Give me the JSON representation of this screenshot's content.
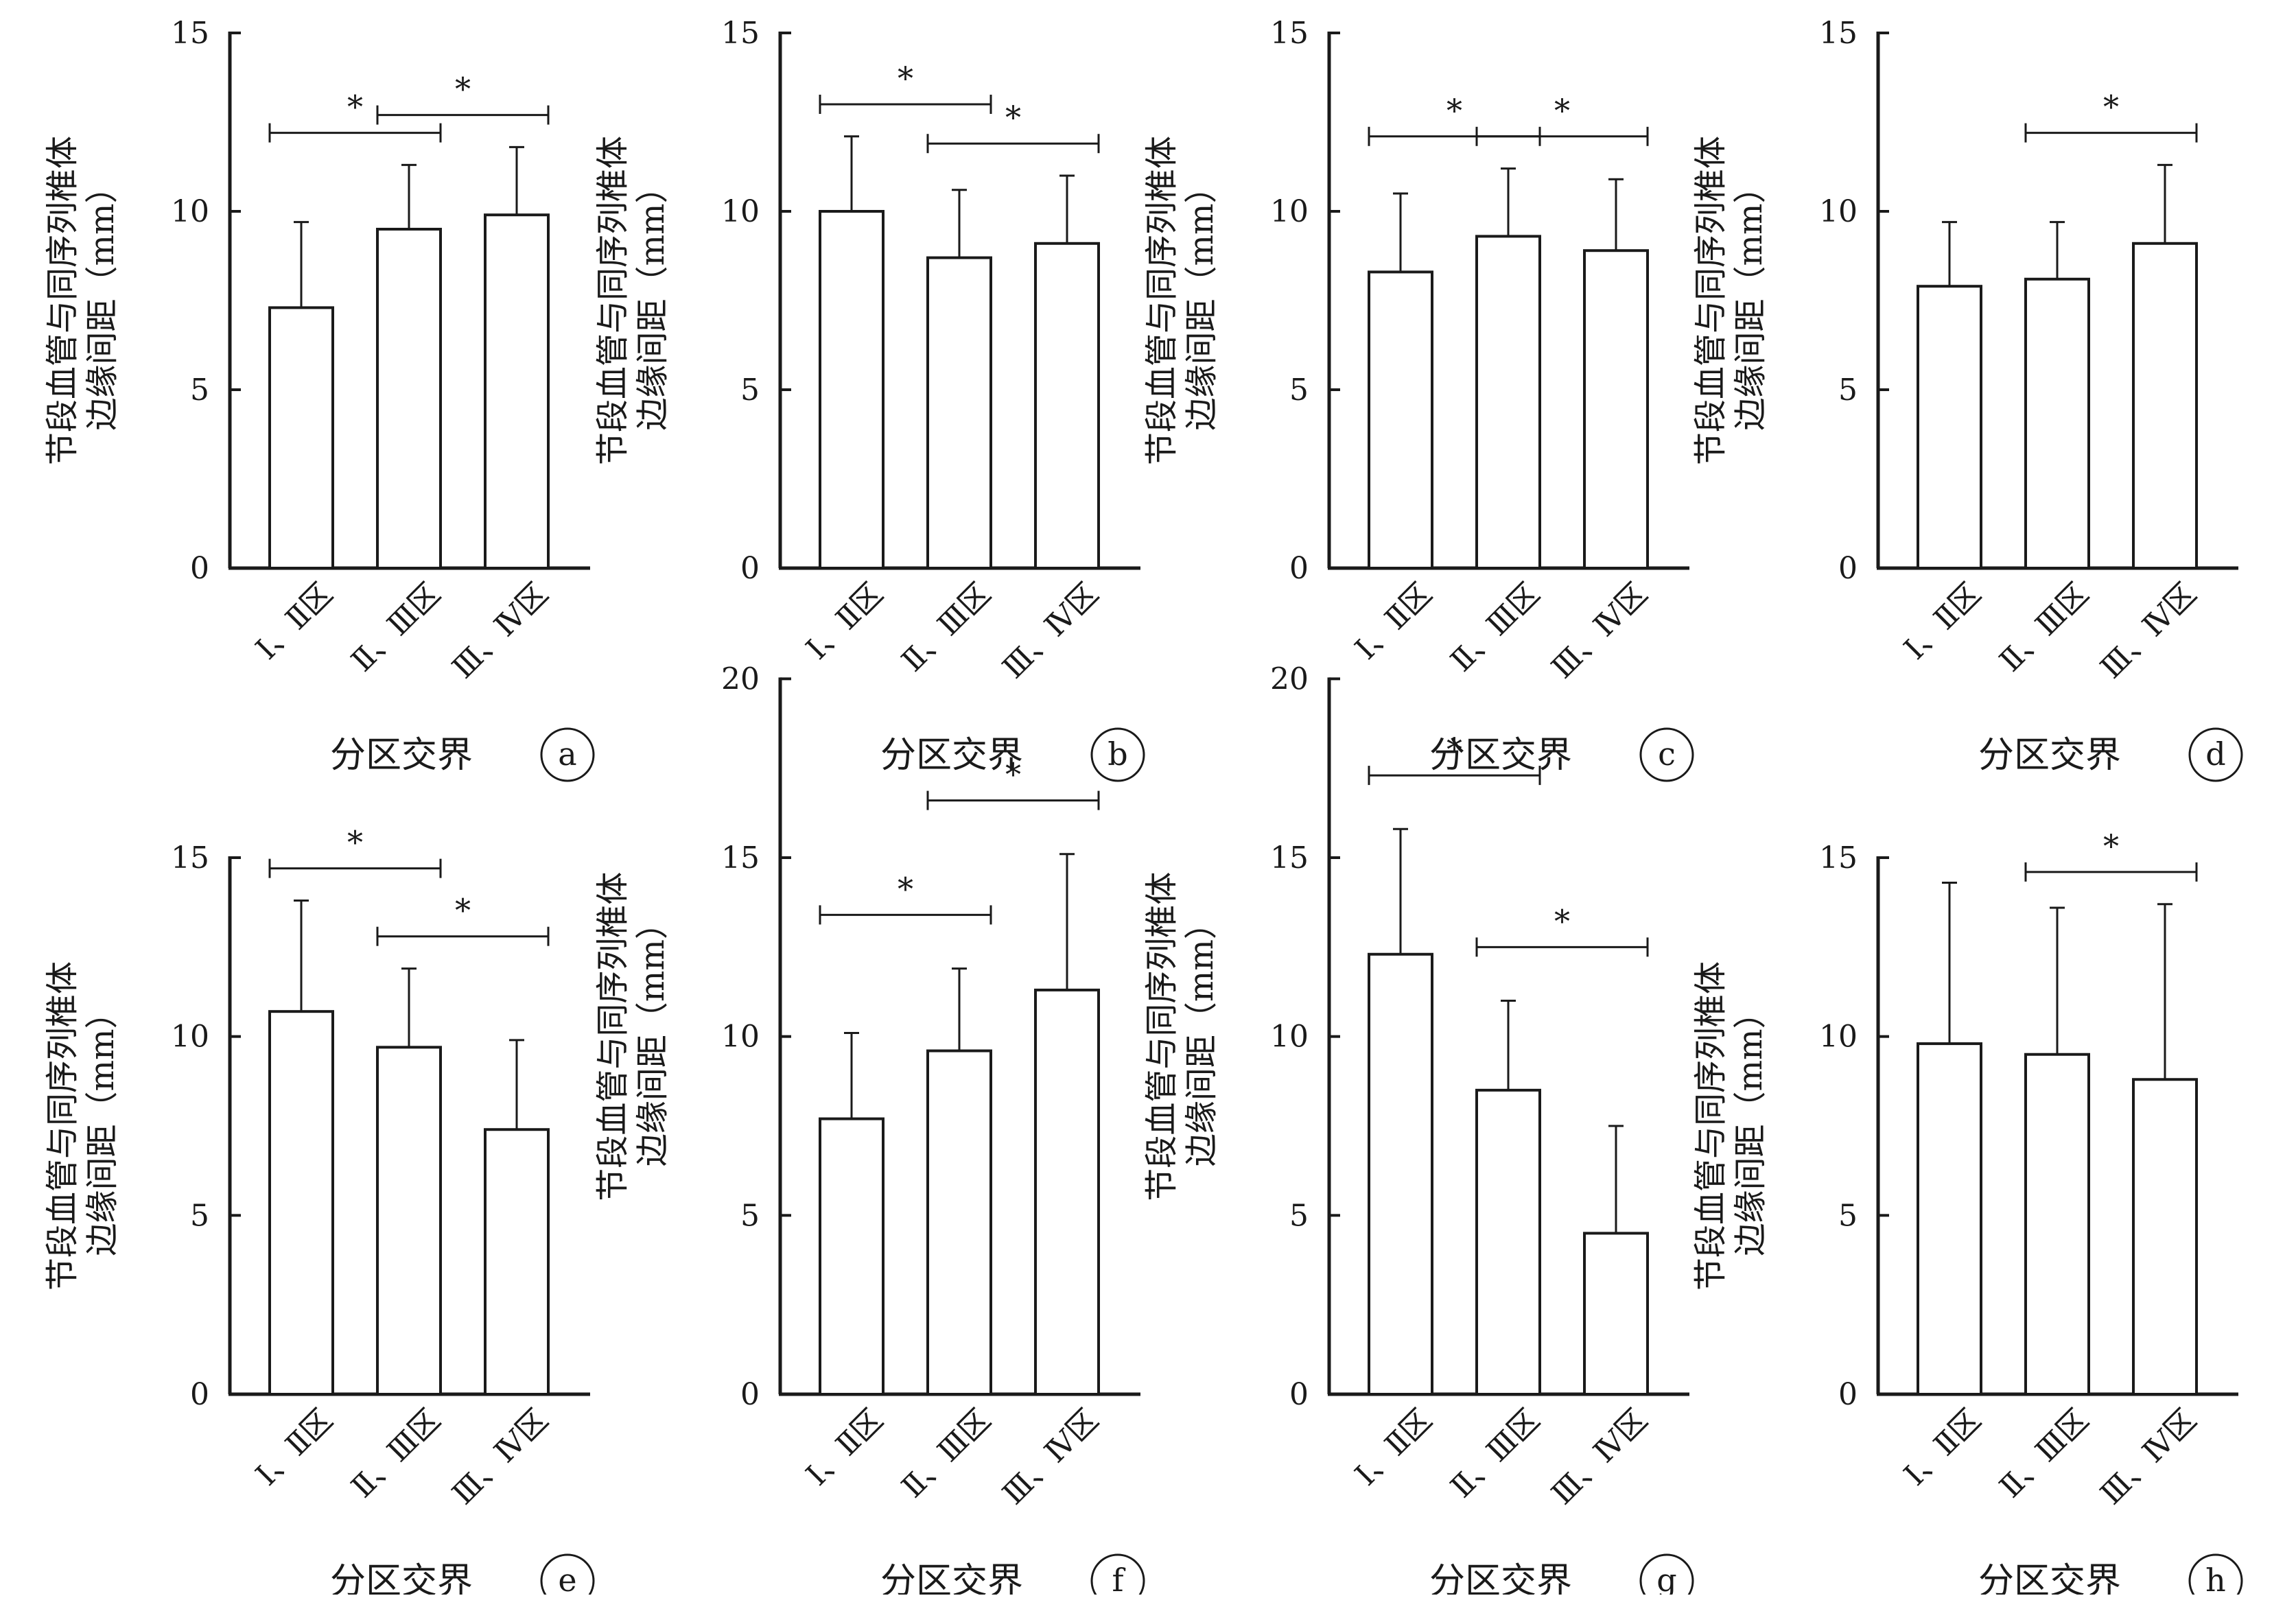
{
  "x_axis_label": "分区交界",
  "y_axis_label_line1": "节段血管与同序列椎体",
  "y_axis_label_line2": "边缘间距（mm）",
  "categories": [
    "Ⅰ、Ⅱ区",
    "Ⅱ、Ⅲ区",
    "Ⅲ、Ⅳ区"
  ],
  "significance_marker": "*",
  "colors": {
    "bar_fill": "#ffffff",
    "stroke": "#1a1a1a"
  },
  "chart_data": [
    {
      "panel": "a",
      "type": "bar",
      "ylim": [
        0,
        15
      ],
      "yticks": [
        0,
        5,
        10,
        15
      ],
      "categories": [
        "Ⅰ、Ⅱ区",
        "Ⅱ、Ⅲ区",
        "Ⅲ、Ⅳ区"
      ],
      "values": [
        7.3,
        9.5,
        9.9
      ],
      "errors": [
        2.4,
        1.8,
        1.9
      ],
      "significance": [
        [
          0,
          1
        ],
        [
          1,
          2
        ]
      ]
    },
    {
      "panel": "b",
      "type": "bar",
      "ylim": [
        0,
        15
      ],
      "yticks": [
        0,
        5,
        10,
        15
      ],
      "categories": [
        "Ⅰ、Ⅱ区",
        "Ⅱ、Ⅲ区",
        "Ⅲ、Ⅳ区"
      ],
      "values": [
        10.0,
        8.7,
        9.1
      ],
      "errors": [
        2.1,
        1.9,
        1.9
      ],
      "significance": [
        [
          0,
          1
        ],
        [
          1,
          2
        ]
      ]
    },
    {
      "panel": "c",
      "type": "bar",
      "ylim": [
        0,
        15
      ],
      "yticks": [
        0,
        5,
        10,
        15
      ],
      "categories": [
        "Ⅰ、Ⅱ区",
        "Ⅱ、Ⅲ区",
        "Ⅲ、Ⅳ区"
      ],
      "values": [
        8.3,
        9.3,
        8.9
      ],
      "errors": [
        2.2,
        1.9,
        2.0
      ],
      "significance": [
        [
          0,
          1
        ],
        [
          1,
          2
        ]
      ]
    },
    {
      "panel": "d",
      "type": "bar",
      "ylim": [
        0,
        15
      ],
      "yticks": [
        0,
        5,
        10,
        15
      ],
      "categories": [
        "Ⅰ、Ⅱ区",
        "Ⅱ、Ⅲ区",
        "Ⅲ、Ⅳ区"
      ],
      "values": [
        7.9,
        8.1,
        9.1
      ],
      "errors": [
        1.8,
        1.6,
        2.2
      ],
      "significance": [
        [
          1,
          2
        ]
      ]
    },
    {
      "panel": "e",
      "type": "bar",
      "ylim": [
        0,
        15
      ],
      "yticks": [
        0,
        5,
        10,
        15
      ],
      "categories": [
        "Ⅰ、Ⅱ区",
        "Ⅱ、Ⅲ区",
        "Ⅲ、Ⅳ区"
      ],
      "values": [
        10.7,
        9.7,
        7.4
      ],
      "errors": [
        3.1,
        2.2,
        2.5
      ],
      "significance": [
        [
          0,
          1
        ],
        [
          1,
          2
        ]
      ]
    },
    {
      "panel": "f",
      "type": "bar",
      "ylim": [
        0,
        20
      ],
      "yticks": [
        0,
        5,
        10,
        15,
        20
      ],
      "categories": [
        "Ⅰ、Ⅱ区",
        "Ⅱ、Ⅲ区",
        "Ⅲ、Ⅳ区"
      ],
      "values": [
        7.7,
        9.6,
        11.3
      ],
      "errors": [
        2.4,
        2.3,
        3.8
      ],
      "significance": [
        [
          0,
          1
        ],
        [
          1,
          2
        ]
      ]
    },
    {
      "panel": "g",
      "type": "bar",
      "ylim": [
        0,
        20
      ],
      "yticks": [
        0,
        5,
        10,
        15,
        20
      ],
      "categories": [
        "Ⅰ、Ⅱ区",
        "Ⅱ、Ⅲ区",
        "Ⅲ、Ⅳ区"
      ],
      "values": [
        12.3,
        8.5,
        4.5
      ],
      "errors": [
        3.5,
        2.5,
        3.0
      ],
      "significance": [
        [
          0,
          1
        ],
        [
          1,
          2
        ]
      ]
    },
    {
      "panel": "h",
      "type": "bar",
      "ylim": [
        0,
        15
      ],
      "yticks": [
        0,
        5,
        10,
        15
      ],
      "categories": [
        "Ⅰ、Ⅱ区",
        "Ⅱ、Ⅲ区",
        "Ⅲ、Ⅳ区"
      ],
      "values": [
        9.8,
        9.5,
        8.8
      ],
      "errors": [
        4.5,
        4.1,
        4.9
      ],
      "significance": [
        [
          1,
          2
        ]
      ]
    }
  ]
}
